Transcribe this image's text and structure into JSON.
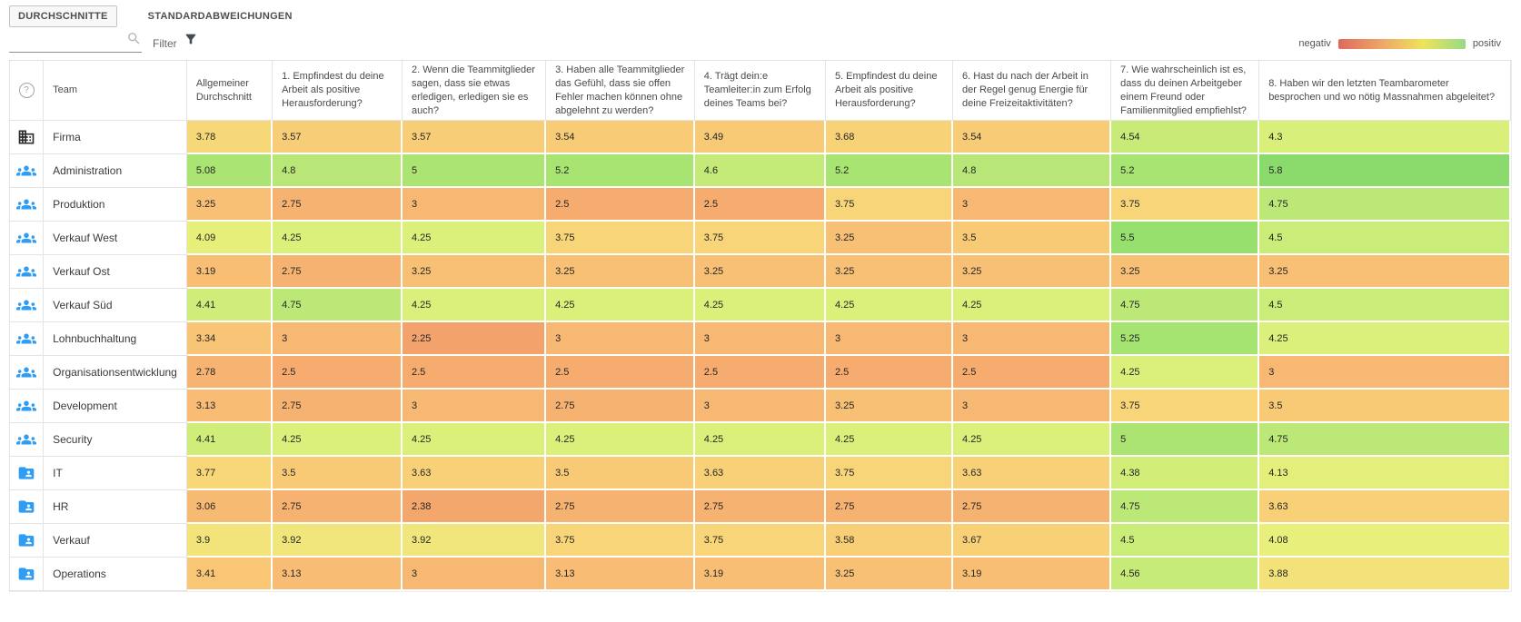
{
  "tabs": [
    {
      "label": "DURCHSCHNITTE",
      "active": true
    },
    {
      "label": "STANDARDABWEICHUNGEN",
      "active": false
    }
  ],
  "filter": {
    "label": "Filter",
    "input_value": "",
    "search_icon": "magnifier",
    "filter_icon": "funnel"
  },
  "legend": {
    "negative_label": "negativ",
    "positive_label": "positiv",
    "gradient": [
      "#df695d",
      "#eca667",
      "#f0e35b",
      "#95db85"
    ]
  },
  "heat_scale": [
    {
      "v": 1,
      "color": "#e66a5a"
    },
    {
      "v": 2,
      "color": "#f29868"
    },
    {
      "v": 2.5,
      "color": "#f5ac6e"
    },
    {
      "v": 3,
      "color": "#f7b873"
    },
    {
      "v": 3.25,
      "color": "#f8c074"
    },
    {
      "v": 3.5,
      "color": "#f8ca76"
    },
    {
      "v": 3.75,
      "color": "#f8d578"
    },
    {
      "v": 4,
      "color": "#eeee7c"
    },
    {
      "v": 4.25,
      "color": "#dbf07a"
    },
    {
      "v": 4.5,
      "color": "#caec78"
    },
    {
      "v": 4.75,
      "color": "#bce878"
    },
    {
      "v": 5,
      "color": "#ace472"
    },
    {
      "v": 5.25,
      "color": "#a6e471"
    },
    {
      "v": 5.5,
      "color": "#98e06d"
    },
    {
      "v": 6,
      "color": "#82d86c"
    }
  ],
  "table": {
    "help_glyph": "?",
    "help_icon": "question-mark-circle",
    "columns": [
      "Team",
      "Allgemeiner Durchschnitt",
      "1. Empfindest du deine Arbeit als positive Herausforderung?",
      "2. Wenn die Teammitglieder sagen, dass sie etwas erledigen, erledigen sie es auch?",
      "3. Haben alle Teammitglieder das Gefühl, dass sie offen Fehler machen können ohne abgelehnt zu werden?",
      "4. Trägt dein:e Teamleiter:in zum Erfolg deines Teams bei?",
      "5. Empfindest du deine Arbeit als positive Herausforderung?",
      "6. Hast du nach der Arbeit in der Regel genug Energie für deine Freizeitaktivitäten?",
      "7. Wie wahrscheinlich ist es, dass du deinen Arbeitgeber einem Freund oder Familienmitglied empfiehlst?",
      "8. Haben wir den letzten Teambarometer besprochen und wo nötig Massnahmen abgeleitet?"
    ],
    "rows": [
      {
        "icon": "company",
        "team": "Firma",
        "values": [
          "3.78",
          "3.57",
          "3.57",
          "3.54",
          "3.49",
          "3.68",
          "3.54",
          "4.54",
          "4.3"
        ]
      },
      {
        "icon": "groups",
        "team": "Administration",
        "values": [
          "5.08",
          "4.8",
          "5",
          "5.2",
          "4.6",
          "5.2",
          "4.8",
          "5.2",
          "5.8"
        ]
      },
      {
        "icon": "groups",
        "team": "Produktion",
        "values": [
          "3.25",
          "2.75",
          "3",
          "2.5",
          "2.5",
          "3.75",
          "3",
          "3.75",
          "4.75"
        ]
      },
      {
        "icon": "groups",
        "team": "Verkauf West",
        "values": [
          "4.09",
          "4.25",
          "4.25",
          "3.75",
          "3.75",
          "3.25",
          "3.5",
          "5.5",
          "4.5"
        ]
      },
      {
        "icon": "groups",
        "team": "Verkauf Ost",
        "values": [
          "3.19",
          "2.75",
          "3.25",
          "3.25",
          "3.25",
          "3.25",
          "3.25",
          "3.25",
          "3.25"
        ]
      },
      {
        "icon": "groups",
        "team": "Verkauf Süd",
        "values": [
          "4.41",
          "4.75",
          "4.25",
          "4.25",
          "4.25",
          "4.25",
          "4.25",
          "4.75",
          "4.5"
        ]
      },
      {
        "icon": "groups",
        "team": "Lohnbuchhaltung",
        "values": [
          "3.34",
          "3",
          "2.25",
          "3",
          "3",
          "3",
          "3",
          "5.25",
          "4.25"
        ]
      },
      {
        "icon": "groups",
        "team": "Organisationsentwicklung",
        "values": [
          "2.78",
          "2.5",
          "2.5",
          "2.5",
          "2.5",
          "2.5",
          "2.5",
          "4.25",
          "3"
        ]
      },
      {
        "icon": "groups",
        "team": "Development",
        "values": [
          "3.13",
          "2.75",
          "3",
          "2.75",
          "3",
          "3.25",
          "3",
          "3.75",
          "3.5"
        ]
      },
      {
        "icon": "groups",
        "team": "Security",
        "values": [
          "4.41",
          "4.25",
          "4.25",
          "4.25",
          "4.25",
          "4.25",
          "4.25",
          "5",
          "4.75"
        ]
      },
      {
        "icon": "folder-shared",
        "team": "IT",
        "values": [
          "3.77",
          "3.5",
          "3.63",
          "3.5",
          "3.63",
          "3.75",
          "3.63",
          "4.38",
          "4.13"
        ]
      },
      {
        "icon": "folder-shared",
        "team": "HR",
        "values": [
          "3.06",
          "2.75",
          "2.38",
          "2.75",
          "2.75",
          "2.75",
          "2.75",
          "4.75",
          "3.63"
        ]
      },
      {
        "icon": "folder-shared",
        "team": "Verkauf",
        "values": [
          "3.9",
          "3.92",
          "3.92",
          "3.75",
          "3.75",
          "3.58",
          "3.67",
          "4.5",
          "4.08"
        ]
      },
      {
        "icon": "folder-shared",
        "team": "Operations",
        "values": [
          "3.41",
          "3.13",
          "3",
          "3.13",
          "3.19",
          "3.25",
          "3.19",
          "4.56",
          "3.88"
        ]
      }
    ]
  }
}
